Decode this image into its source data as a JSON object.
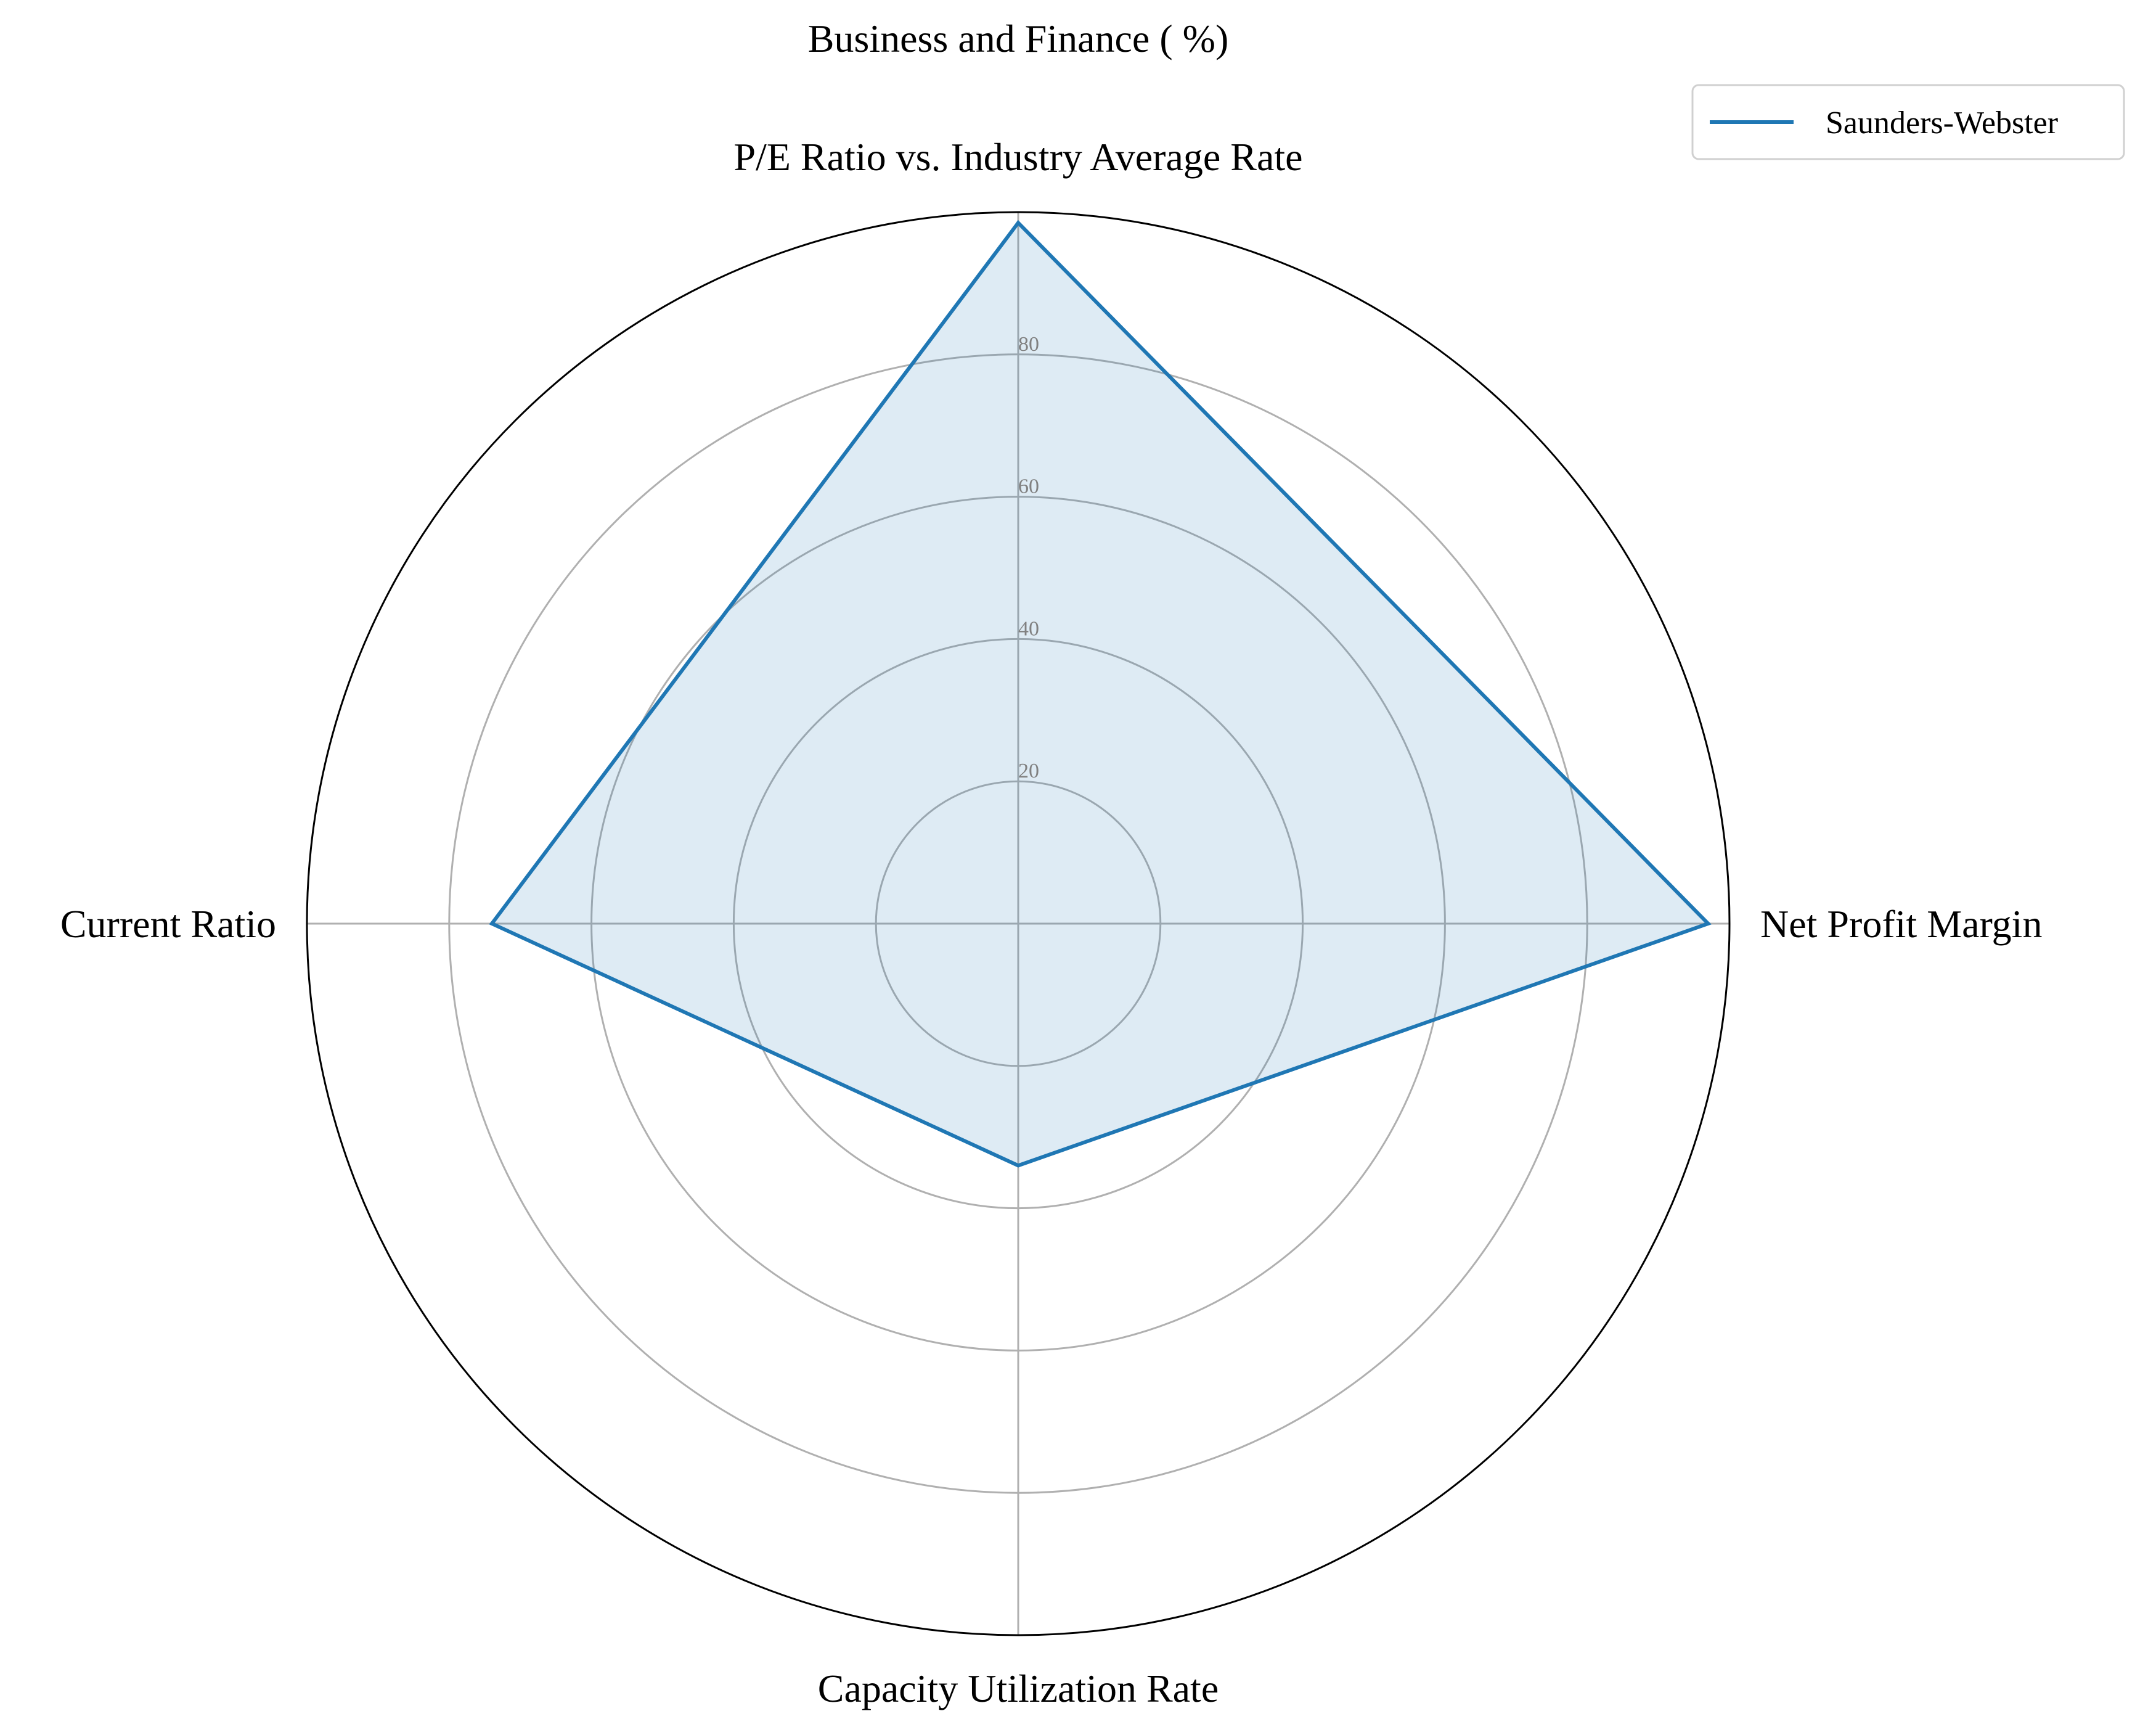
{
  "chart_data": {
    "type": "radar",
    "title": "Business and Finance ( %)",
    "categories": [
      "P/E Ratio vs. Industry Average Rate",
      "Net Profit Margin",
      "Capacity Utilization Rate",
      "Current Ratio"
    ],
    "rlim": [
      0,
      100
    ],
    "r_ticks": [
      20,
      40,
      60,
      80
    ],
    "r_tick_labels": [
      "20",
      "40",
      "60",
      "80"
    ],
    "grid": true,
    "legend_position": "top-right",
    "series": [
      {
        "name": "Saunders-Webster",
        "values": [
          98.5,
          97,
          34,
          74
        ],
        "color": "#1f77b4"
      }
    ]
  }
}
